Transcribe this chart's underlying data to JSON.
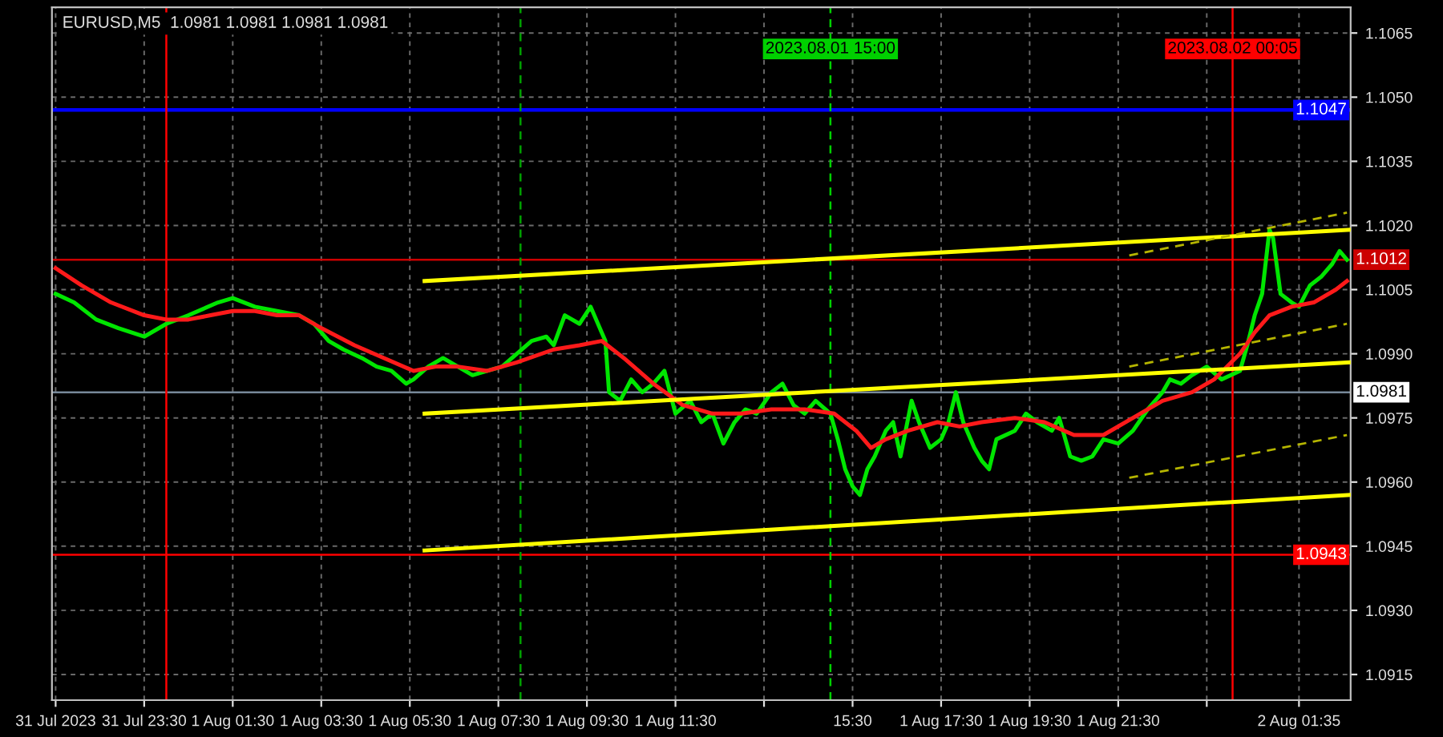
{
  "chart_data": {
    "type": "line",
    "title": "EURUSD,M5  1.0981 1.0981 1.0981 1.0981",
    "xlim": [
      "2023-07-31T21:25",
      "2023-08-02T02:45"
    ],
    "ylim": [
      1.0909,
      1.1071
    ],
    "xticks": [
      {
        "value": "2023-07-31T21:30",
        "label": "31 Jul 2023"
      },
      {
        "value": "2023-07-31T23:30",
        "label": "31 Jul 23:30"
      },
      {
        "value": "2023-08-01T01:30",
        "label": "1 Aug 01:30"
      },
      {
        "value": "2023-08-01T03:30",
        "label": "1 Aug 03:30"
      },
      {
        "value": "2023-08-01T05:30",
        "label": "1 Aug 05:30"
      },
      {
        "value": "2023-08-01T07:30",
        "label": "1 Aug 07:30"
      },
      {
        "value": "2023-08-01T09:30",
        "label": "1 Aug 09:30"
      },
      {
        "value": "2023-08-01T11:30",
        "label": "1 Aug 11:30"
      },
      {
        "value": "2023-08-01T13:30",
        "label": null
      },
      {
        "value": "2023-08-01T15:30",
        "label": "15:30"
      },
      {
        "value": "2023-08-01T17:30",
        "label": "1 Aug 17:30"
      },
      {
        "value": "2023-08-01T19:30",
        "label": "1 Aug 19:30"
      },
      {
        "value": "2023-08-01T21:30",
        "label": "1 Aug 21:30"
      },
      {
        "value": "2023-08-01T23:30",
        "label": null
      },
      {
        "value": "2023-08-02T01:35",
        "label": "2 Aug 01:35"
      }
    ],
    "yticks": [
      {
        "value": 1.0915,
        "label": "1.0915"
      },
      {
        "value": 1.093,
        "label": "1.0930"
      },
      {
        "value": 1.0945,
        "label": "1.0945"
      },
      {
        "value": 1.096,
        "label": "1.0960"
      },
      {
        "value": 1.0975,
        "label": "1.0975"
      },
      {
        "value": 1.099,
        "label": "1.0990"
      },
      {
        "value": 1.1005,
        "label": "1.1005"
      },
      {
        "value": 1.102,
        "label": "1.1020"
      },
      {
        "value": 1.1035,
        "label": "1.1035"
      },
      {
        "value": 1.105,
        "label": "1.1050"
      },
      {
        "value": 1.1065,
        "label": "1.1065"
      }
    ],
    "grid": true,
    "series": [
      {
        "color": "#00e600",
        "x": [
          "2023-07-31T21:30",
          "2023-07-31T21:55",
          "2023-07-31T22:25",
          "2023-07-31T22:55",
          "2023-07-31T23:30",
          "2023-08-01T00:00",
          "2023-08-01T00:30",
          "2023-08-01T01:10",
          "2023-08-01T01:30",
          "2023-08-01T02:00",
          "2023-08-01T02:30",
          "2023-08-01T03:00",
          "2023-08-01T03:20",
          "2023-08-01T03:40",
          "2023-08-01T04:00",
          "2023-08-01T04:25",
          "2023-08-01T04:45",
          "2023-08-01T05:05",
          "2023-08-01T05:25",
          "2023-08-01T05:35",
          "2023-08-01T05:55",
          "2023-08-01T06:15",
          "2023-08-01T06:35",
          "2023-08-01T06:55",
          "2023-08-01T07:15",
          "2023-08-01T07:35",
          "2023-08-01T07:55",
          "2023-08-01T08:15",
          "2023-08-01T08:35",
          "2023-08-01T08:45",
          "2023-08-01T09:00",
          "2023-08-01T09:20",
          "2023-08-01T09:35",
          "2023-08-01T09:50",
          "2023-08-01T09:55",
          "2023-08-01T10:00",
          "2023-08-01T10:15",
          "2023-08-01T10:30",
          "2023-08-01T10:45",
          "2023-08-01T11:00",
          "2023-08-01T11:15",
          "2023-08-01T11:30",
          "2023-08-01T11:50",
          "2023-08-01T12:05",
          "2023-08-01T12:20",
          "2023-08-01T12:35",
          "2023-08-01T12:50",
          "2023-08-01T13:05",
          "2023-08-01T13:20",
          "2023-08-01T13:40",
          "2023-08-01T13:55",
          "2023-08-01T14:10",
          "2023-08-01T14:25",
          "2023-08-01T14:40",
          "2023-08-01T15:00",
          "2023-08-01T15:10",
          "2023-08-01T15:20",
          "2023-08-01T15:30",
          "2023-08-01T15:40",
          "2023-08-01T15:50",
          "2023-08-01T16:00",
          "2023-08-01T16:15",
          "2023-08-01T16:25",
          "2023-08-01T16:35",
          "2023-08-01T16:50",
          "2023-08-01T17:00",
          "2023-08-01T17:15",
          "2023-08-01T17:30",
          "2023-08-01T17:40",
          "2023-08-01T17:50",
          "2023-08-01T18:00",
          "2023-08-01T18:15",
          "2023-08-01T18:25",
          "2023-08-01T18:35",
          "2023-08-01T18:45",
          "2023-08-01T19:10",
          "2023-08-01T19:25",
          "2023-08-01T19:40",
          "2023-08-01T20:00",
          "2023-08-01T20:10",
          "2023-08-01T20:25",
          "2023-08-01T20:40",
          "2023-08-01T20:55",
          "2023-08-01T21:10",
          "2023-08-01T21:30",
          "2023-08-01T21:50",
          "2023-08-01T22:10",
          "2023-08-01T22:30",
          "2023-08-01T22:40",
          "2023-08-01T22:55",
          "2023-08-01T23:10",
          "2023-08-01T23:30",
          "2023-08-01T23:50",
          "2023-08-02T00:15",
          "2023-08-02T00:25",
          "2023-08-02T00:35",
          "2023-08-02T00:45",
          "2023-08-02T00:55",
          "2023-08-02T01:00",
          "2023-08-02T01:10",
          "2023-08-02T01:25",
          "2023-08-02T01:35",
          "2023-08-02T01:50",
          "2023-08-02T02:05",
          "2023-08-02T02:20",
          "2023-08-02T02:30",
          "2023-08-02T02:40"
        ],
        "values": [
          1.1004,
          1.1002,
          1.0998,
          1.0996,
          1.0994,
          1.0997,
          1.0999,
          1.1002,
          1.1003,
          1.1001,
          1.1,
          1.0999,
          1.0997,
          1.0993,
          1.0991,
          1.0989,
          1.0987,
          1.0986,
          1.0983,
          1.0984,
          1.0987,
          1.0989,
          1.0987,
          1.0985,
          1.0986,
          1.0987,
          1.099,
          1.0993,
          1.0994,
          1.0992,
          1.0999,
          1.0997,
          1.1001,
          1.0995,
          1.0993,
          1.0981,
          1.0979,
          1.0984,
          1.0981,
          1.0983,
          1.0986,
          1.0976,
          1.0979,
          1.0974,
          1.0976,
          1.0969,
          1.0974,
          1.0977,
          1.0976,
          1.0981,
          1.0983,
          1.0978,
          1.0976,
          1.0979,
          1.0976,
          1.097,
          1.0963,
          1.0959,
          1.0957,
          1.0963,
          1.0966,
          1.0972,
          1.0974,
          1.0966,
          1.0979,
          1.0974,
          1.0968,
          1.097,
          1.0974,
          1.0981,
          1.0974,
          1.0968,
          1.0965,
          1.0963,
          1.097,
          1.0972,
          1.0976,
          1.0974,
          1.0972,
          1.0975,
          1.0966,
          1.0965,
          1.0966,
          1.097,
          1.0969,
          1.0972,
          1.0977,
          1.0981,
          1.0984,
          1.0983,
          1.0985,
          1.0987,
          1.0984,
          1.0986,
          1.0992,
          1.0999,
          1.1004,
          1.1019,
          1.1017,
          1.1004,
          1.1002,
          1.1001,
          1.1006,
          1.1008,
          1.1011,
          1.1014,
          1.1012
        ]
      },
      {
        "color": "#ff1a1a",
        "x": [
          "2023-07-31T21:30",
          "2023-07-31T22:05",
          "2023-07-31T22:45",
          "2023-07-31T23:30",
          "2023-08-01T00:00",
          "2023-08-01T00:30",
          "2023-08-01T01:00",
          "2023-08-01T01:30",
          "2023-08-01T02:00",
          "2023-08-01T02:30",
          "2023-08-01T03:00",
          "2023-08-01T03:30",
          "2023-08-01T04:15",
          "2023-08-01T04:55",
          "2023-08-01T05:35",
          "2023-08-01T06:05",
          "2023-08-01T06:35",
          "2023-08-01T07:15",
          "2023-08-01T07:55",
          "2023-08-01T08:45",
          "2023-08-01T09:20",
          "2023-08-01T09:50",
          "2023-08-01T10:20",
          "2023-08-01T11:00",
          "2023-08-01T11:40",
          "2023-08-01T12:20",
          "2023-08-01T13:00",
          "2023-08-01T13:40",
          "2023-08-01T14:25",
          "2023-08-01T15:05",
          "2023-08-01T15:35",
          "2023-08-01T15:55",
          "2023-08-01T16:15",
          "2023-08-01T16:45",
          "2023-08-01T17:25",
          "2023-08-01T17:55",
          "2023-08-01T18:25",
          "2023-08-01T19:10",
          "2023-08-01T19:50",
          "2023-08-01T20:30",
          "2023-08-01T21:10",
          "2023-08-01T21:50",
          "2023-08-01T22:30",
          "2023-08-01T23:10",
          "2023-08-01T23:40",
          "2023-08-02T00:15",
          "2023-08-02T00:35",
          "2023-08-02T00:55",
          "2023-08-02T01:25",
          "2023-08-02T01:55",
          "2023-08-02T02:25",
          "2023-08-02T02:40"
        ],
        "values": [
          1.101,
          1.1006,
          1.1002,
          1.0999,
          1.0998,
          1.0998,
          1.0999,
          1.1,
          1.1,
          1.0999,
          1.0999,
          1.0996,
          1.0992,
          1.0989,
          1.0986,
          1.0987,
          1.0987,
          1.0986,
          1.0988,
          1.0991,
          1.0992,
          1.0993,
          1.0989,
          1.0983,
          1.0978,
          1.0976,
          1.0976,
          1.0977,
          1.0977,
          1.0976,
          1.0972,
          1.0968,
          1.097,
          1.0972,
          1.0974,
          1.0973,
          1.0974,
          1.0975,
          1.0974,
          1.0971,
          1.0971,
          1.0975,
          1.0979,
          1.0981,
          1.0984,
          1.099,
          1.0995,
          1.0999,
          1.1001,
          1.1002,
          1.1005,
          1.1007
        ]
      },
      {
        "color": "#ffff00",
        "x": [
          "2023-08-01T05:50",
          "2023-08-02T02:45"
        ],
        "values": [
          1.1007,
          1.1019
        ]
      },
      {
        "color": "#ffff00",
        "x": [
          "2023-08-01T05:50",
          "2023-08-02T02:45"
        ],
        "values": [
          1.0976,
          1.0988
        ]
      },
      {
        "color": "#ffff00",
        "x": [
          "2023-08-01T05:50",
          "2023-08-02T02:45"
        ],
        "values": [
          1.0944,
          1.0957
        ]
      },
      {
        "color": "#b5b500",
        "line_style": "dashed",
        "x": [
          "2023-08-01T21:45",
          "2023-08-02T02:40"
        ],
        "values": [
          1.1013,
          1.1023
        ]
      },
      {
        "color": "#b5b500",
        "line_style": "dashed",
        "x": [
          "2023-08-01T21:45",
          "2023-08-02T02:40"
        ],
        "values": [
          1.0987,
          1.0997
        ]
      },
      {
        "color": "#b5b500",
        "line_style": "dashed",
        "x": [
          "2023-08-01T21:45",
          "2023-08-02T02:40"
        ],
        "values": [
          1.0961,
          1.0971
        ]
      }
    ],
    "ref_lines": [
      {
        "axis": "y",
        "value": 1.1047,
        "label": "1.1047",
        "color": "#0000ff"
      },
      {
        "axis": "y",
        "value": 1.1012,
        "label": "1.1012",
        "color": "#cc0000"
      },
      {
        "axis": "y",
        "value": 1.0943,
        "label": "1.0943",
        "color": "#ff0000"
      },
      {
        "axis": "y",
        "value": 1.0981,
        "label": "1.0981",
        "color": "#778899"
      },
      {
        "axis": "x",
        "value": "2023-08-01T00:00",
        "color": "#ff0000"
      },
      {
        "axis": "x",
        "value": "2023-08-01T08:00",
        "color": "#00a000",
        "line_style": "dashed"
      },
      {
        "axis": "x",
        "value": "2023-08-01T15:00",
        "label": "2023.08.01 15:00",
        "color": "#00d000",
        "line_style": "dashed"
      },
      {
        "axis": "x",
        "value": "2023-08-02T00:05",
        "label": "2023.08.02 00:05",
        "color": "#ff0000"
      }
    ]
  }
}
